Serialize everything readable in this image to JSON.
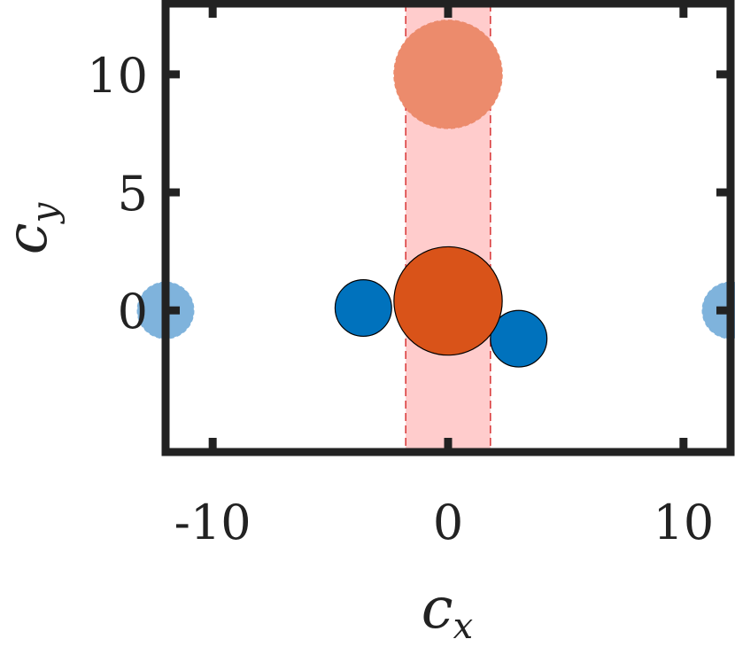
{
  "chart_data": {
    "type": "scatter",
    "title": "",
    "xlabel": {
      "base": "c",
      "sub": "x"
    },
    "ylabel": {
      "base": "c",
      "sub": "y"
    },
    "xlim": [
      -12,
      12
    ],
    "ylim": [
      -6,
      13
    ],
    "xticks": [
      -10,
      0,
      10
    ],
    "xtick_labels": [
      "-10",
      "0",
      "10"
    ],
    "yticks": [
      0,
      5,
      10
    ],
    "ytick_labels": [
      "0",
      "5",
      "10"
    ],
    "grid": false,
    "band": {
      "x_range": [
        -1.8,
        1.8
      ],
      "fill": "#ffcccc",
      "stroke": "#d62728"
    },
    "series": [
      {
        "role": "blue",
        "color": "#0072bd",
        "points": [
          {
            "x": -3.6,
            "y": 0.1,
            "r": 1.2
          },
          {
            "x": 3.0,
            "y": -1.2,
            "r": 1.2
          }
        ]
      },
      {
        "role": "blue-faded",
        "color": "#7fb3dc",
        "points": [
          {
            "x": -12.0,
            "y": 0.0,
            "r": 1.2
          },
          {
            "x": 12.0,
            "y": 0.0,
            "r": 1.2
          }
        ]
      },
      {
        "role": "orange",
        "color": "#d95319",
        "points": [
          {
            "x": 0.0,
            "y": 0.4,
            "r": 2.3
          }
        ]
      },
      {
        "role": "orange-faded",
        "color": "#ec8b6c",
        "points": [
          {
            "x": 0.0,
            "y": 10.0,
            "r": 2.3
          }
        ]
      }
    ]
  }
}
